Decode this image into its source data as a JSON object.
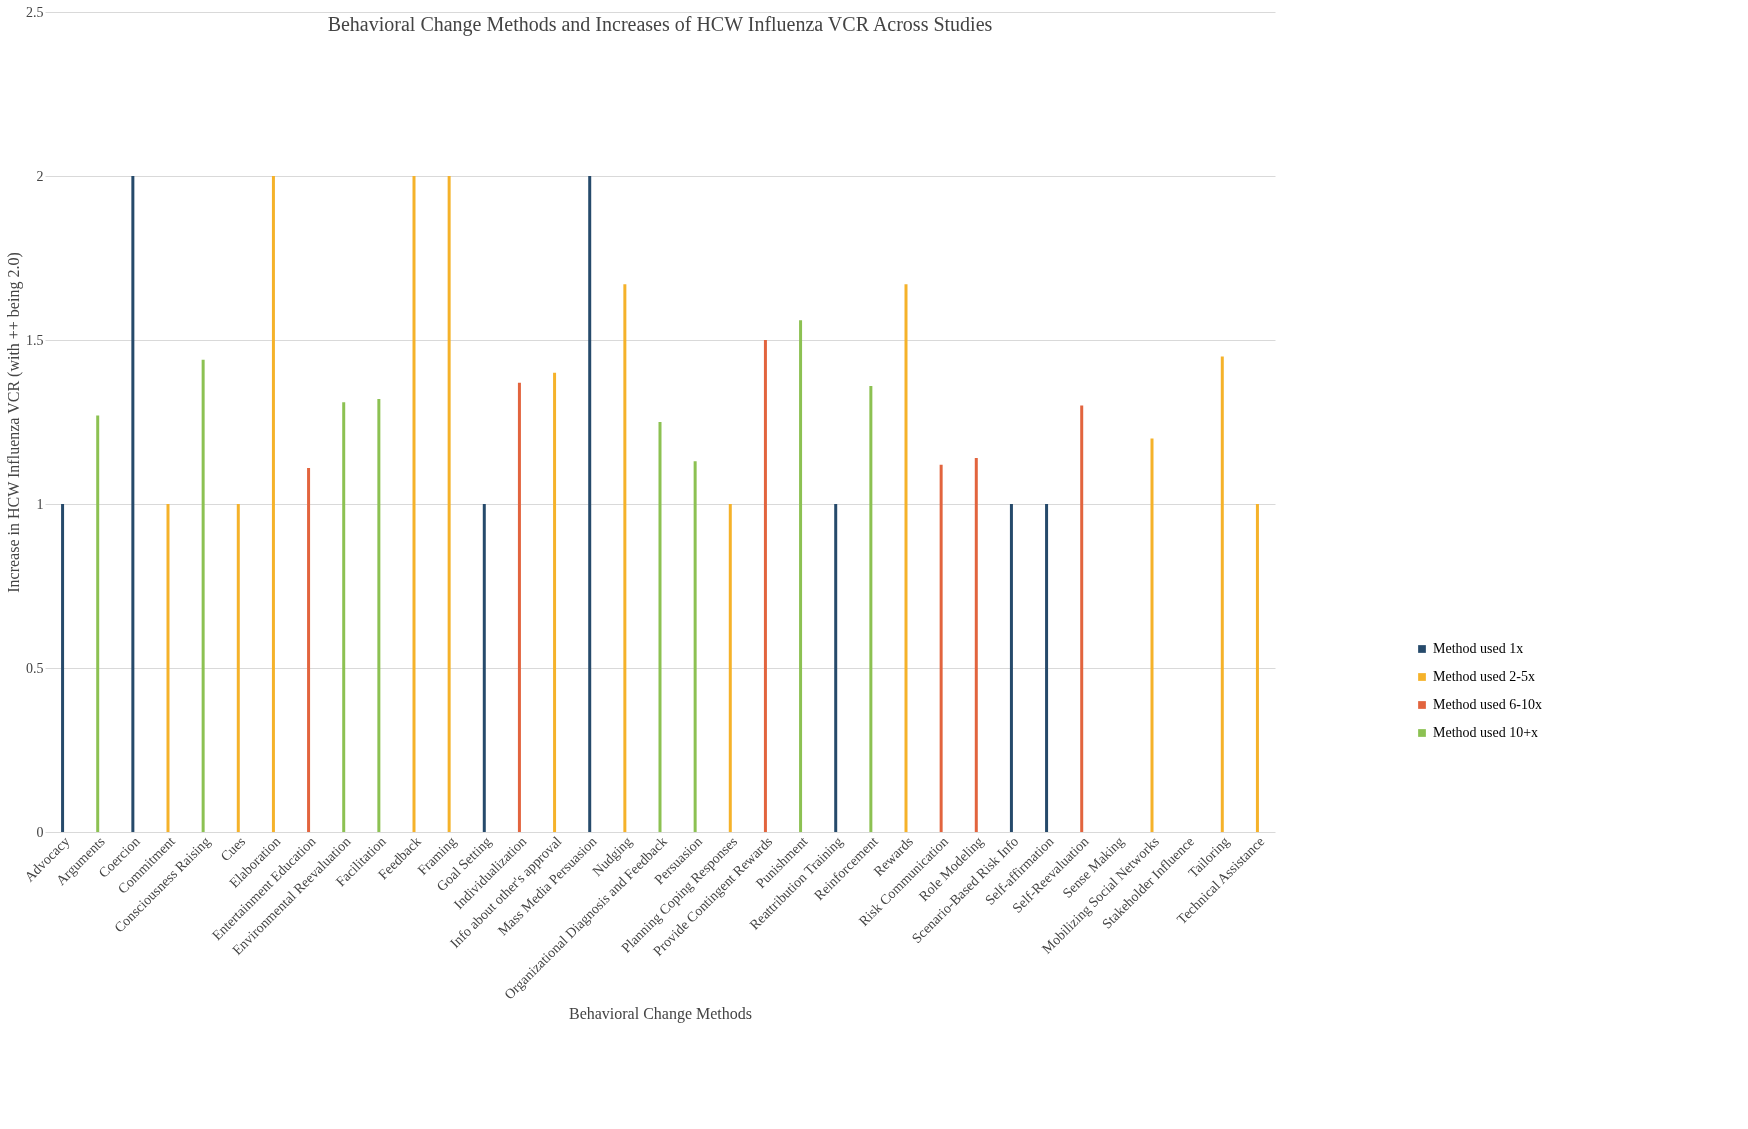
{
  "chart_data": {
    "type": "bar",
    "title": "Behavioral Change Methods and Increases of HCW Influenza VCR Across Studies",
    "xlabel": "Behavioral Change Methods",
    "ylabel": "Increase in HCW Influenza VCR (with ++ being 2.0)",
    "categories": [
      "Advocacy",
      "Arguments",
      "Coercion",
      "Commitment",
      "Consciousness Raising",
      "Cues",
      "Elaboration",
      "Entertainment Education",
      "Environmental Reevaluation",
      "Facilitation",
      "Feedback",
      "Framing",
      "Goal Setting",
      "Individualization",
      "Info about other's approval",
      "Mass Media Persuasion",
      "Nudging",
      "Organizational Diagnosis and Feedback",
      "Persuasion",
      "Planning Coping Responses",
      "Provide Contingent Rewards",
      "Punishment",
      "Reattribution Training",
      "Reinforcement",
      "Rewards",
      "Risk Communication",
      "Role Modeling",
      "Scenario-Based Risk Info",
      "Self-affirmation",
      "Self-Reevaluation",
      "Sense Making",
      "Mobilizing Social Networks",
      "Stakeholder Influence",
      "Tailoring",
      "Technical Assistance"
    ],
    "series": [
      {
        "name": "Method used 1x",
        "color": "#264a6b",
        "values": [
          1,
          null,
          2,
          null,
          null,
          null,
          null,
          null,
          null,
          null,
          null,
          null,
          1,
          null,
          null,
          2,
          null,
          null,
          null,
          null,
          null,
          null,
          1,
          null,
          null,
          null,
          null,
          1,
          1,
          null,
          null,
          null,
          null,
          null,
          null
        ]
      },
      {
        "name": "Method used 2-5x",
        "color": "#f5b22a",
        "values": [
          null,
          null,
          null,
          1,
          null,
          1,
          2,
          null,
          null,
          null,
          2,
          2,
          null,
          null,
          1.4,
          null,
          1.67,
          null,
          null,
          1,
          null,
          null,
          null,
          null,
          1.67,
          null,
          null,
          null,
          null,
          null,
          null,
          1.2,
          null,
          1.45,
          1
        ]
      },
      {
        "name": "Method used 6-10x",
        "color": "#e2643e",
        "values": [
          null,
          null,
          null,
          null,
          null,
          null,
          null,
          1.11,
          null,
          null,
          null,
          null,
          null,
          1.37,
          null,
          null,
          null,
          null,
          null,
          null,
          1.5,
          null,
          null,
          null,
          null,
          1.12,
          1.14,
          null,
          null,
          1.3,
          null,
          null,
          null,
          null,
          null
        ]
      },
      {
        "name": "Method used 10+x",
        "color": "#8cc152",
        "values": [
          null,
          1.27,
          null,
          null,
          1.44,
          null,
          null,
          null,
          1.31,
          1.32,
          null,
          null,
          null,
          null,
          null,
          null,
          null,
          1.25,
          1.13,
          null,
          null,
          1.56,
          null,
          1.36,
          null,
          null,
          null,
          null,
          null,
          null,
          null,
          null,
          null,
          null,
          null
        ]
      }
    ],
    "ylim": [
      0,
      2.5
    ],
    "yticks": [
      0,
      0.5,
      1,
      1.5,
      2,
      2.5
    ],
    "grid": "y",
    "legend": "right"
  }
}
